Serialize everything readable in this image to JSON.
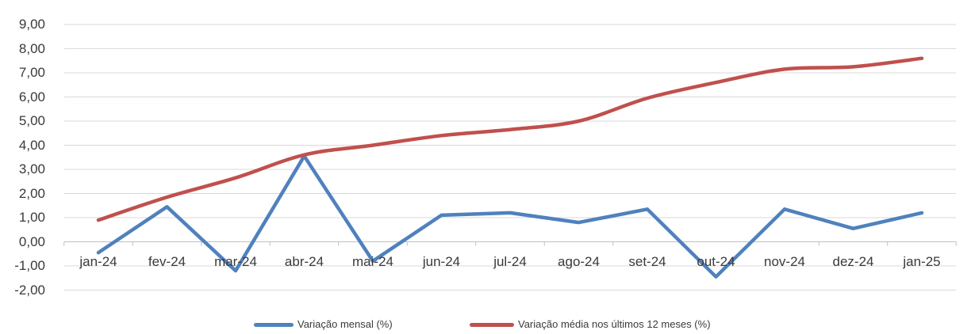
{
  "chart_data": {
    "type": "line",
    "title": "",
    "categories": [
      "jan-24",
      "fev-24",
      "mar-24",
      "abr-24",
      "mai-24",
      "jun-24",
      "jul-24",
      "ago-24",
      "set-24",
      "out-24",
      "nov-24",
      "dez-24",
      "jan-25"
    ],
    "series": [
      {
        "name": "Variação mensal (%)",
        "color": "#4F81BD",
        "smooth": false,
        "values": [
          -0.45,
          1.45,
          -1.2,
          3.55,
          -0.8,
          1.1,
          1.2,
          0.8,
          1.35,
          -1.45,
          1.35,
          0.55,
          1.2
        ]
      },
      {
        "name": "Variação média nos últimos 12 meses (%)",
        "color": "#C0504D",
        "smooth": true,
        "values": [
          0.9,
          1.85,
          2.65,
          3.6,
          4.0,
          4.4,
          4.65,
          5.0,
          5.95,
          6.6,
          7.15,
          7.25,
          7.6
        ]
      }
    ],
    "xlabel": "",
    "ylabel": "",
    "ylim": [
      -2,
      9
    ],
    "ytick_step": 1,
    "ytick_labels": [
      "9,00",
      "8,00",
      "7,00",
      "6,00",
      "5,00",
      "4,00",
      "3,00",
      "2,00",
      "1,00",
      "0,00",
      "-1,00",
      "-2,00"
    ],
    "grid": true,
    "legend_position": "bottom",
    "decimal_separator": ","
  },
  "colors": {
    "gridline": "#d9d9d9",
    "axis_line": "#bfbfbf",
    "axis_text": "#3a3a3a"
  }
}
